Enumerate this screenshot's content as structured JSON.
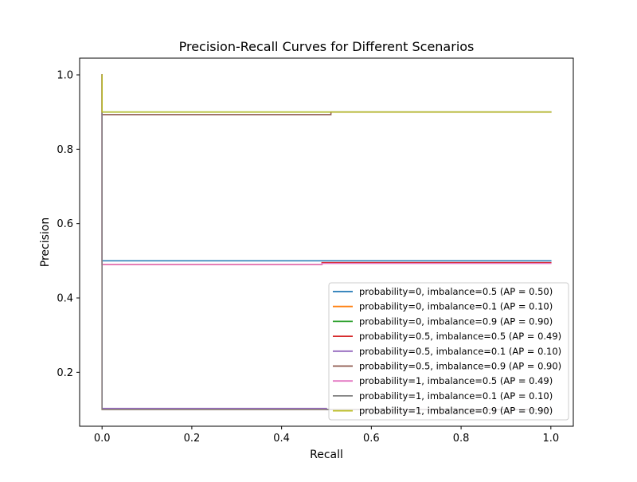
{
  "chart_data": {
    "type": "line",
    "title": "Precision-Recall Curves for Different Scenarios",
    "xlabel": "Recall",
    "ylabel": "Precision",
    "xlim": [
      -0.05,
      1.05
    ],
    "ylim": [
      0.055,
      1.045
    ],
    "xticks": [
      0.0,
      0.2,
      0.4,
      0.6,
      0.8,
      1.0
    ],
    "xtick_labels": [
      "0.0",
      "0.2",
      "0.4",
      "0.6",
      "0.8",
      "1.0"
    ],
    "yticks": [
      0.2,
      0.4,
      0.6,
      0.8,
      1.0
    ],
    "ytick_labels": [
      "0.2",
      "0.4",
      "0.6",
      "0.8",
      "1.0"
    ],
    "grid": false,
    "legend_position": "lower-right",
    "series": [
      {
        "name": "probability=0, imbalance=0.5 (AP = 0.50)",
        "color": "#1f77b4",
        "x": [
          0.0,
          0.0,
          1.0
        ],
        "y": [
          1.0,
          0.5,
          0.5
        ]
      },
      {
        "name": "probability=0, imbalance=0.1 (AP = 0.10)",
        "color": "#ff7f0e",
        "x": [
          0.0,
          0.0,
          1.0
        ],
        "y": [
          1.0,
          0.1,
          0.1
        ]
      },
      {
        "name": "probability=0, imbalance=0.9 (AP = 0.90)",
        "color": "#2ca02c",
        "x": [
          0.0,
          0.0,
          1.0
        ],
        "y": [
          1.0,
          0.9,
          0.9
        ]
      },
      {
        "name": "probability=0.5, imbalance=0.5 (AP = 0.49)",
        "color": "#d62728",
        "x": [
          0.0,
          0.0,
          0.49,
          0.49,
          1.0
        ],
        "y": [
          1.0,
          0.49,
          0.49,
          0.495,
          0.495
        ]
      },
      {
        "name": "probability=0.5, imbalance=0.1 (AP = 0.10)",
        "color": "#9467bd",
        "x": [
          0.0,
          0.0,
          0.5,
          0.5,
          1.0
        ],
        "y": [
          1.0,
          0.103,
          0.103,
          0.1,
          0.1
        ]
      },
      {
        "name": "probability=0.5, imbalance=0.9 (AP = 0.90)",
        "color": "#8c564b",
        "x": [
          0.0,
          0.0,
          0.51,
          0.51,
          1.0
        ],
        "y": [
          1.0,
          0.893,
          0.893,
          0.9,
          0.9
        ]
      },
      {
        "name": "probability=1, imbalance=0.5 (AP = 0.49)",
        "color": "#e377c2",
        "x": [
          0.0,
          0.0,
          0.49,
          0.49,
          1.0
        ],
        "y": [
          1.0,
          0.49,
          0.49,
          0.493,
          0.493
        ]
      },
      {
        "name": "probability=1, imbalance=0.1 (AP = 0.10)",
        "color": "#7f7f7f",
        "x": [
          0.0,
          0.0,
          1.0
        ],
        "y": [
          1.0,
          0.1,
          0.1
        ]
      },
      {
        "name": "probability=1, imbalance=0.9 (AP = 0.90)",
        "color": "#bcbd22",
        "x": [
          0.0,
          0.0,
          1.0
        ],
        "y": [
          1.0,
          0.9,
          0.9
        ]
      }
    ]
  }
}
